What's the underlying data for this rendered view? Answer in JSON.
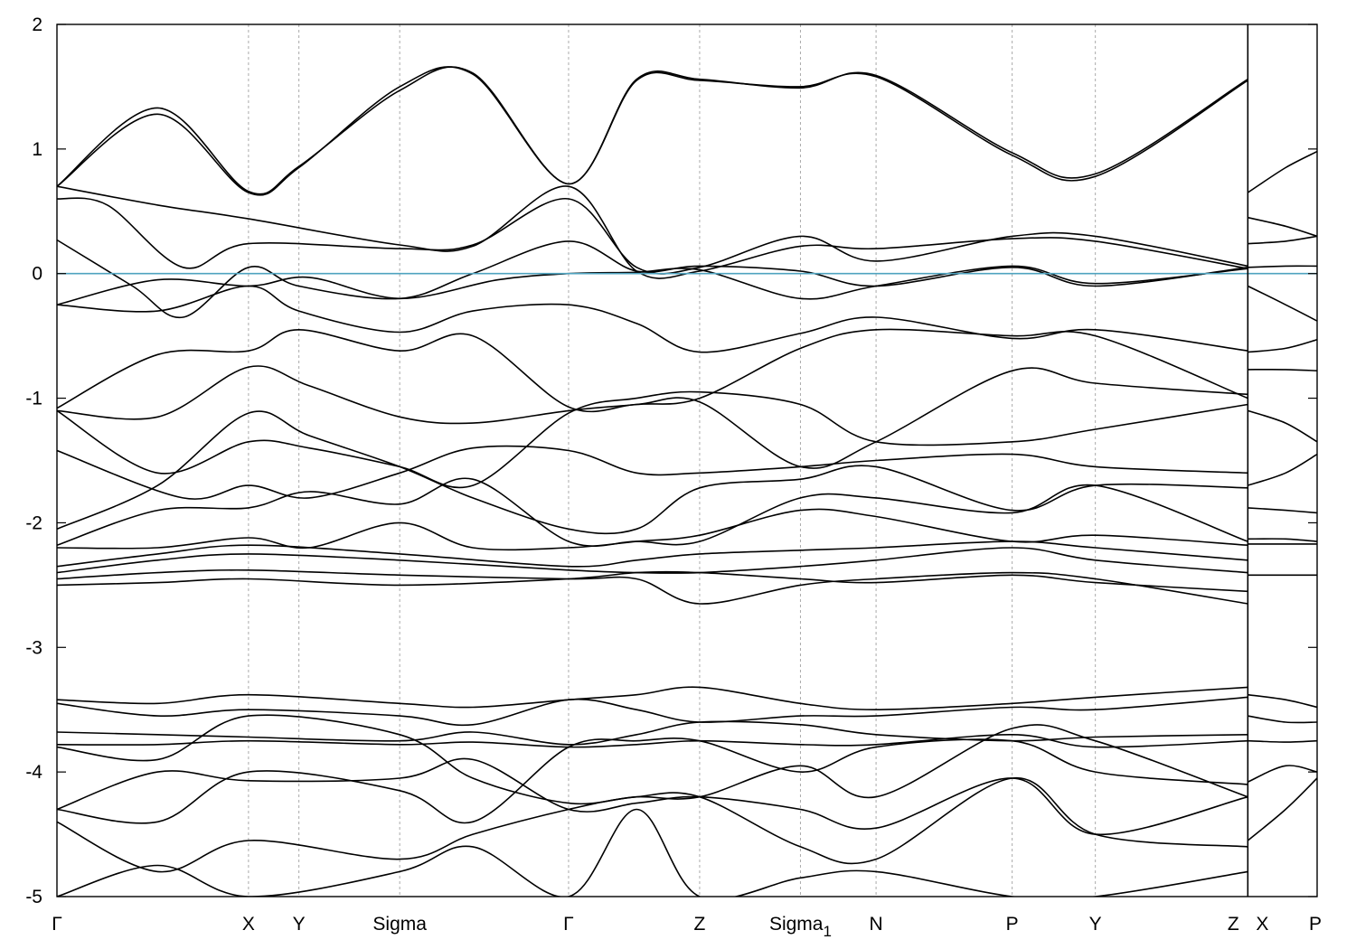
{
  "chart_data": {
    "type": "line",
    "ylim": [
      -5,
      2
    ],
    "y_ticks": [
      -5,
      -4,
      -3,
      -2,
      -1,
      0,
      1,
      2
    ],
    "y_tick_labels": [
      "-5",
      "-4",
      "-3",
      "-2",
      "-1",
      "0",
      "1",
      "2"
    ],
    "x_range": [
      0,
      10
    ],
    "k_points": [
      {
        "label": "Γ",
        "sub": "",
        "x": 0.0
      },
      {
        "label": "X",
        "sub": "",
        "x": 1.52
      },
      {
        "label": "Y",
        "sub": "",
        "x": 1.92
      },
      {
        "label": "Sigma",
        "sub": "",
        "x": 2.72
      },
      {
        "label": "Γ",
        "sub": "",
        "x": 4.06
      },
      {
        "label": "Z",
        "sub": "",
        "x": 5.1
      },
      {
        "label": "Sigma",
        "sub": "1",
        "x": 5.9
      },
      {
        "label": "N",
        "sub": "",
        "x": 6.5
      },
      {
        "label": "P",
        "sub": "",
        "x": 7.58
      },
      {
        "label": "Y",
        "sub": "",
        "x": 8.24
      },
      {
        "label": "Z",
        "sub": "",
        "x": 9.45
      },
      {
        "label": "X",
        "sub": "",
        "x": 9.45
      },
      {
        "label": "P",
        "sub": "",
        "x": 10.0
      }
    ],
    "fermi_level": 0,
    "grid": "vertical dashed at k-points",
    "series": [
      {
        "x": [
          0,
          0.8,
          1.52,
          1.92,
          2.72,
          3.3,
          4.06,
          4.6,
          5.1,
          5.9,
          6.5,
          7.58,
          8.24,
          9.45
        ],
        "y": [
          0.7,
          1.28,
          0.65,
          0.85,
          1.5,
          1.6,
          0.72,
          1.55,
          1.55,
          1.5,
          1.58,
          0.95,
          0.78,
          1.55
        ]
      },
      {
        "x": [
          0,
          0.8,
          1.52,
          1.92,
          2.72,
          3.3,
          4.06,
          4.6,
          5.1,
          5.9,
          6.5,
          7.58,
          8.24,
          9.45
        ],
        "y": [
          0.7,
          1.33,
          0.66,
          0.86,
          1.47,
          1.61,
          0.72,
          1.56,
          1.56,
          1.49,
          1.59,
          0.97,
          0.8,
          1.56
        ]
      },
      {
        "x": [
          0,
          0.8,
          1.52,
          2.72,
          3.3,
          4.06,
          4.6,
          5.1,
          5.9,
          6.5,
          7.58,
          8.24,
          9.45
        ],
        "y": [
          0.7,
          0.55,
          0.44,
          0.23,
          0.22,
          0.7,
          0.02,
          0.02,
          0.22,
          0.2,
          0.28,
          0.26,
          0.04
        ]
      },
      {
        "x": [
          0,
          0.4,
          1.0,
          1.52,
          2.72,
          3.3,
          4.06,
          4.6,
          5.1,
          5.9,
          6.5,
          7.58,
          8.24,
          9.45
        ],
        "y": [
          0.6,
          0.55,
          0.05,
          0.24,
          0.2,
          0.23,
          0.6,
          0.05,
          0.05,
          0.3,
          0.1,
          0.3,
          0.3,
          0.06
        ]
      },
      {
        "x": [
          0,
          0.6,
          1.0,
          1.52,
          1.92,
          2.72,
          3.3,
          4.06,
          4.6,
          5.1,
          5.9,
          6.5,
          7.58,
          8.24,
          9.45
        ],
        "y": [
          0.27,
          -0.1,
          -0.35,
          0.05,
          -0.1,
          -0.2,
          0.0,
          0.26,
          0.02,
          0.06,
          0.02,
          -0.1,
          0.05,
          -0.1,
          0.05
        ]
      },
      {
        "x": [
          0,
          0.8,
          1.52,
          2.0,
          2.72,
          3.5,
          4.06,
          4.6,
          5.1,
          5.9,
          6.5,
          7.58,
          8.24,
          9.45
        ],
        "y": [
          -0.25,
          -0.05,
          -0.1,
          -0.03,
          -0.2,
          -0.05,
          0.0,
          0.01,
          0.03,
          -0.2,
          -0.1,
          0.06,
          -0.08,
          0.04
        ]
      },
      {
        "x": [
          0,
          0.8,
          1.52,
          1.92,
          2.72,
          3.3,
          4.06,
          4.6,
          5.1,
          5.9,
          6.5,
          7.58,
          8.24,
          9.45
        ],
        "y": [
          -1.08,
          -0.65,
          -0.62,
          -0.45,
          -0.62,
          -0.5,
          -1.07,
          -1.05,
          -1.03,
          -1.55,
          -1.35,
          -0.78,
          -0.88,
          -0.97
        ]
      },
      {
        "x": [
          0,
          0.8,
          1.52,
          1.92,
          2.72,
          3.3,
          4.06,
          4.6,
          5.1,
          5.9,
          6.5,
          7.58,
          8.24,
          9.45
        ],
        "y": [
          -0.25,
          -0.3,
          -0.1,
          -0.3,
          -0.47,
          -0.3,
          -0.25,
          -0.4,
          -0.63,
          -0.48,
          -0.35,
          -0.52,
          -0.45,
          -0.62
        ]
      },
      {
        "x": [
          0,
          0.8,
          1.52,
          2.0,
          2.72,
          3.3,
          4.06,
          4.6,
          5.1,
          5.9,
          6.5,
          7.58,
          8.24,
          9.45
        ],
        "y": [
          -1.1,
          -1.15,
          -0.75,
          -0.9,
          -1.15,
          -1.2,
          -1.1,
          -1.05,
          -1.0,
          -0.6,
          -0.45,
          -0.5,
          -0.5,
          -1.0
        ]
      },
      {
        "x": [
          0,
          0.8,
          1.52,
          2.0,
          2.72,
          3.3,
          4.06,
          4.6,
          5.1,
          5.9,
          6.5,
          7.58,
          8.24,
          9.45
        ],
        "y": [
          -1.1,
          -1.6,
          -1.35,
          -1.4,
          -1.55,
          -1.7,
          -1.12,
          -1.0,
          -0.95,
          -1.05,
          -1.35,
          -1.35,
          -1.25,
          -1.05
        ]
      },
      {
        "x": [
          0,
          1.0,
          1.52,
          2.0,
          2.72,
          3.3,
          4.06,
          4.6,
          5.1,
          5.9,
          6.5,
          7.58,
          8.24,
          9.45
        ],
        "y": [
          -1.42,
          -1.8,
          -1.7,
          -1.8,
          -1.6,
          -1.4,
          -1.42,
          -1.6,
          -1.6,
          -1.55,
          -1.5,
          -1.45,
          -1.55,
          -1.6
        ]
      },
      {
        "x": [
          0,
          0.8,
          1.52,
          2.0,
          2.72,
          3.3,
          4.06,
          4.6,
          5.1,
          5.9,
          6.5,
          7.58,
          8.24,
          9.45
        ],
        "y": [
          -2.05,
          -1.7,
          -1.12,
          -1.3,
          -1.55,
          -1.8,
          -2.05,
          -2.05,
          -1.72,
          -1.65,
          -1.55,
          -1.9,
          -1.7,
          -1.72
        ]
      },
      {
        "x": [
          0,
          0.8,
          1.52,
          2.0,
          2.72,
          3.3,
          4.06,
          4.6,
          5.1,
          5.9,
          6.5,
          7.58,
          8.24,
          9.45
        ],
        "y": [
          -2.18,
          -1.9,
          -1.88,
          -1.75,
          -1.85,
          -1.65,
          -2.15,
          -2.15,
          -2.15,
          -1.8,
          -1.8,
          -1.92,
          -1.7,
          -2.15
        ]
      },
      {
        "x": [
          0,
          0.8,
          1.52,
          2.0,
          2.72,
          3.3,
          4.06,
          4.6,
          5.1,
          5.9,
          6.5,
          7.58,
          8.24,
          9.45
        ],
        "y": [
          -2.2,
          -2.2,
          -2.12,
          -2.2,
          -2.0,
          -2.2,
          -2.2,
          -2.15,
          -2.1,
          -1.9,
          -1.95,
          -2.15,
          -2.1,
          -2.18
        ]
      },
      {
        "x": [
          0,
          0.8,
          1.52,
          2.72,
          4.06,
          4.6,
          5.1,
          5.9,
          6.5,
          7.58,
          8.24,
          9.45
        ],
        "y": [
          -2.35,
          -2.25,
          -2.18,
          -2.25,
          -2.35,
          -2.3,
          -2.25,
          -2.22,
          -2.2,
          -2.15,
          -2.2,
          -2.3
        ]
      },
      {
        "x": [
          0,
          0.8,
          1.52,
          2.72,
          4.06,
          4.6,
          5.1,
          5.9,
          6.5,
          7.58,
          8.24,
          9.45
        ],
        "y": [
          -2.4,
          -2.3,
          -2.25,
          -2.3,
          -2.38,
          -2.4,
          -2.4,
          -2.35,
          -2.3,
          -2.2,
          -2.3,
          -2.4
        ]
      },
      {
        "x": [
          0,
          0.8,
          1.52,
          2.72,
          4.06,
          4.6,
          5.1,
          5.9,
          6.5,
          7.58,
          8.24,
          9.45
        ],
        "y": [
          -2.45,
          -2.4,
          -2.38,
          -2.42,
          -2.45,
          -2.45,
          -2.65,
          -2.5,
          -2.45,
          -2.4,
          -2.45,
          -2.65
        ]
      },
      {
        "x": [
          0,
          0.8,
          1.52,
          2.72,
          4.06,
          4.6,
          5.1,
          5.9,
          6.5,
          7.58,
          8.24,
          9.45
        ],
        "y": [
          -2.5,
          -2.48,
          -2.45,
          -2.5,
          -2.45,
          -2.4,
          -2.4,
          -2.45,
          -2.48,
          -2.42,
          -2.48,
          -2.55
        ]
      },
      {
        "x": [
          0,
          0.8,
          1.52,
          2.72,
          3.3,
          4.06,
          4.6,
          5.1,
          5.9,
          6.5,
          7.58,
          8.24,
          9.45
        ],
        "y": [
          -3.42,
          -3.45,
          -3.38,
          -3.45,
          -3.48,
          -3.42,
          -3.38,
          -3.32,
          -3.45,
          -3.5,
          -3.45,
          -3.4,
          -3.32
        ]
      },
      {
        "x": [
          0,
          0.8,
          1.52,
          2.72,
          3.3,
          4.06,
          4.6,
          5.1,
          5.9,
          6.5,
          7.58,
          8.24,
          9.45
        ],
        "y": [
          -3.45,
          -3.55,
          -3.5,
          -3.55,
          -3.62,
          -3.42,
          -3.5,
          -3.6,
          -3.55,
          -3.55,
          -3.48,
          -3.5,
          -3.4
        ]
      },
      {
        "x": [
          0,
          0.8,
          1.52,
          2.72,
          3.3,
          4.06,
          4.6,
          5.1,
          5.9,
          6.5,
          7.58,
          8.24,
          9.45
        ],
        "y": [
          -3.68,
          -3.7,
          -3.72,
          -3.75,
          -3.68,
          -3.78,
          -3.7,
          -3.6,
          -3.62,
          -3.7,
          -3.75,
          -3.72,
          -3.7
        ]
      },
      {
        "x": [
          0,
          0.8,
          1.52,
          2.72,
          3.3,
          4.06,
          4.6,
          5.1,
          5.9,
          6.5,
          7.58,
          8.24,
          9.45
        ],
        "y": [
          -3.78,
          -3.78,
          -3.75,
          -3.78,
          -3.76,
          -3.8,
          -3.78,
          -3.75,
          -3.78,
          -3.78,
          -3.7,
          -3.8,
          -3.75
        ]
      },
      {
        "x": [
          0,
          0.8,
          1.52,
          2.72,
          3.3,
          4.06,
          4.6,
          5.1,
          5.9,
          6.5,
          7.58,
          8.24,
          9.45
        ],
        "y": [
          -3.8,
          -3.9,
          -3.55,
          -3.7,
          -4.05,
          -4.25,
          -4.2,
          -4.2,
          -3.95,
          -4.2,
          -3.65,
          -3.75,
          -4.2
        ]
      },
      {
        "x": [
          0,
          0.8,
          1.52,
          2.72,
          3.3,
          4.06,
          4.6,
          5.1,
          5.9,
          6.5,
          7.58,
          8.24,
          9.45
        ],
        "y": [
          -4.3,
          -4.0,
          -4.07,
          -4.05,
          -3.9,
          -4.3,
          -4.25,
          -4.2,
          -4.3,
          -4.45,
          -4.05,
          -4.5,
          -4.2
        ]
      },
      {
        "x": [
          0,
          0.8,
          1.52,
          2.72,
          3.3,
          4.06,
          4.6,
          5.1,
          5.9,
          6.5,
          7.58,
          8.24,
          9.45
        ],
        "y": [
          -4.3,
          -4.4,
          -4.0,
          -4.15,
          -4.4,
          -3.8,
          -3.75,
          -3.75,
          -4.0,
          -3.8,
          -3.75,
          -4.0,
          -4.1
        ]
      },
      {
        "x": [
          0,
          0.8,
          1.52,
          2.72,
          3.3,
          4.06,
          4.6,
          5.1,
          5.9,
          6.5,
          7.58,
          8.24,
          9.45
        ],
        "y": [
          -4.4,
          -4.8,
          -4.55,
          -4.7,
          -4.5,
          -4.3,
          -4.2,
          -4.2,
          -4.6,
          -4.7,
          -4.05,
          -4.5,
          -4.6
        ]
      },
      {
        "x": [
          0,
          0.8,
          1.52,
          2.72,
          3.3,
          4.06,
          4.6,
          5.1,
          5.9,
          6.5,
          7.58,
          8.24,
          9.45
        ],
        "y": [
          -5.0,
          -4.75,
          -5.0,
          -4.8,
          -4.6,
          -5.0,
          -4.3,
          -5.0,
          -4.85,
          -4.8,
          -5.0,
          -5.0,
          -4.8
        ]
      }
    ],
    "right_series": [
      {
        "x": [
          9.45,
          9.75,
          10.0
        ],
        "y": [
          0.65,
          0.85,
          0.98
        ]
      },
      {
        "x": [
          9.45,
          9.75,
          10.0
        ],
        "y": [
          0.45,
          0.38,
          0.3
        ]
      },
      {
        "x": [
          9.45,
          9.75,
          10.0
        ],
        "y": [
          0.24,
          0.26,
          0.3
        ]
      },
      {
        "x": [
          9.45,
          9.75,
          10.0
        ],
        "y": [
          0.05,
          0.06,
          0.06
        ]
      },
      {
        "x": [
          9.45,
          9.75,
          10.0
        ],
        "y": [
          -0.1,
          -0.25,
          -0.38
        ]
      },
      {
        "x": [
          9.45,
          9.75,
          10.0
        ],
        "y": [
          -0.63,
          -0.6,
          -0.53
        ]
      },
      {
        "x": [
          9.45,
          9.75,
          10.0
        ],
        "y": [
          -0.77,
          -0.77,
          -0.78
        ]
      },
      {
        "x": [
          9.45,
          9.75,
          10.0
        ],
        "y": [
          -1.1,
          -1.2,
          -1.35
        ]
      },
      {
        "x": [
          9.45,
          9.75,
          10.0
        ],
        "y": [
          -1.7,
          -1.6,
          -1.45
        ]
      },
      {
        "x": [
          9.45,
          9.75,
          10.0
        ],
        "y": [
          -1.88,
          -1.9,
          -1.92
        ]
      },
      {
        "x": [
          9.45,
          9.75,
          10.0
        ],
        "y": [
          -2.13,
          -2.13,
          -2.15
        ]
      },
      {
        "x": [
          9.45,
          9.75,
          10.0
        ],
        "y": [
          -2.17,
          -2.17,
          -2.17
        ]
      },
      {
        "x": [
          9.45,
          9.75,
          10.0
        ],
        "y": [
          -2.42,
          -2.42,
          -2.42
        ]
      },
      {
        "x": [
          9.45,
          9.75,
          10.0
        ],
        "y": [
          -3.38,
          -3.42,
          -3.48
        ]
      },
      {
        "x": [
          9.45,
          9.75,
          10.0
        ],
        "y": [
          -3.55,
          -3.6,
          -3.6
        ]
      },
      {
        "x": [
          9.45,
          9.75,
          10.0
        ],
        "y": [
          -3.75,
          -3.76,
          -3.75
        ]
      },
      {
        "x": [
          9.45,
          9.75,
          10.0
        ],
        "y": [
          -4.08,
          -3.95,
          -4.0
        ]
      },
      {
        "x": [
          9.45,
          9.75,
          10.0
        ],
        "y": [
          -4.55,
          -4.3,
          -4.05
        ]
      }
    ]
  }
}
